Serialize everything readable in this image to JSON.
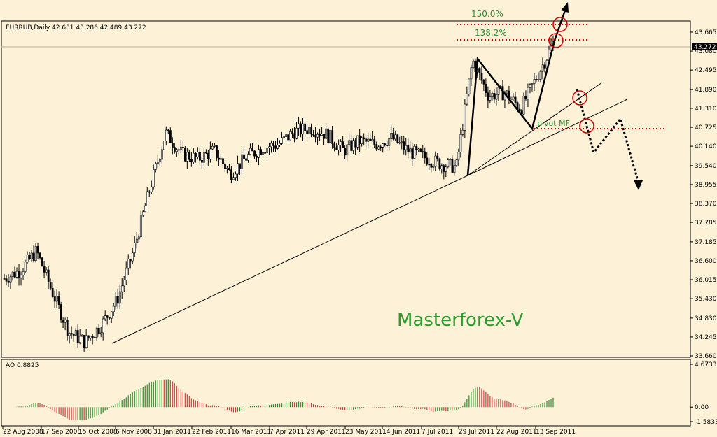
{
  "chart_data": {
    "type": "candlestick",
    "symbol_header": "EURRUB,Daily  42.631 43.286 42.489 43.272",
    "current_price": "43.272",
    "y_ticks": [
      "43.665",
      "43.080",
      "42.495",
      "41.890",
      "41.310",
      "40.725",
      "40.140",
      "39.540",
      "38.955",
      "38.370",
      "37.785",
      "37.185",
      "36.600",
      "36.015",
      "35.430",
      "34.830",
      "34.245",
      "33.660"
    ],
    "x_ticks": [
      "22 Aug 2008",
      "17 Sep 2008",
      "15 Oct 2008",
      "6 Nov 2008",
      "31 Jan 2011",
      "22 Feb 2011",
      "16 Mar 2011",
      "7 Apr 2011",
      "29 Apr 2011",
      "23 May 2011",
      "14 Jun 2011",
      "7 Jul 2011",
      "29 Jul 2011",
      "22 Aug 2011",
      "13 Sep 2011"
    ],
    "price_path": [
      [
        "22 Aug 2008",
        36.05
      ],
      [
        "1 Sep 2008",
        36.3
      ],
      [
        "17 Sep 2008",
        36.9
      ],
      [
        "25 Sep 2008",
        35.6
      ],
      [
        "15 Oct 2008",
        34.4
      ],
      [
        "22 Oct 2008",
        34.1
      ],
      [
        "29 Oct 2008",
        34.6
      ],
      [
        "6 Nov 2008",
        35.4
      ],
      [
        "13 Nov 2008",
        36.9
      ],
      [
        "20 Nov 2008",
        38.8
      ],
      [
        "13 Jan 2011",
        40.55
      ],
      [
        "20 Jan 2011",
        39.9
      ],
      [
        "31 Jan 2011",
        39.75
      ],
      [
        "8 Feb 2011",
        40.0
      ],
      [
        "22 Feb 2011",
        39.3
      ],
      [
        "1 Mar 2011",
        39.8
      ],
      [
        "16 Mar 2011",
        40.1
      ],
      [
        "28 Mar 2011",
        40.2
      ],
      [
        "7 Apr 2011",
        40.6
      ],
      [
        "18 Apr 2011",
        40.7
      ],
      [
        "29 Apr 2011",
        40.5
      ],
      [
        "10 May 2011",
        40.0
      ],
      [
        "23 May 2011",
        40.3
      ],
      [
        "1 Jun 2011",
        40.2
      ],
      [
        "14 Jun 2011",
        40.4
      ],
      [
        "24 Jun 2011",
        40.0
      ],
      [
        "7 Jul 2011",
        39.8
      ],
      [
        "20 Jul 2011",
        39.6
      ],
      [
        "29 Jul 2011",
        39.5
      ],
      [
        "5 Aug 2011",
        42.8
      ],
      [
        "12 Aug 2011",
        41.7
      ],
      [
        "22 Aug 2011",
        41.8
      ],
      [
        "1 Sep 2011",
        41.3
      ],
      [
        "13 Sep 2011",
        42.3
      ],
      [
        "20 Sep 2011",
        43.3
      ]
    ],
    "y_min": 33.66,
    "y_max": 43.665,
    "fib_levels": [
      {
        "label": "150.0%",
        "price": 43.9
      },
      {
        "label": "138.2%",
        "price": 43.4
      }
    ],
    "pivot_label": "pivot MF",
    "pivot_price": 40.725,
    "watermark": "Masterforex-V",
    "indicator": {
      "name": "AO",
      "header": "AO 0.8825",
      "y_ticks": [
        "4.6733",
        "0.00",
        "-1.5833"
      ],
      "y_min": -1.5833,
      "y_max": 4.6733
    },
    "colors": {
      "background": "#fdf2d8",
      "candles": "#000000",
      "fib_lines": "#cc0000",
      "ao_up": "#2e8b2e",
      "ao_down": "#d04040",
      "labels": "#2e8b2e"
    }
  }
}
